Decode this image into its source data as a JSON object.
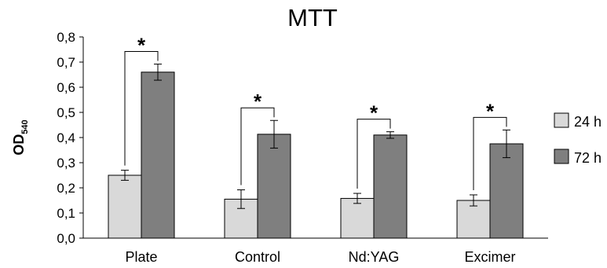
{
  "chart_data": {
    "type": "bar",
    "title": "MTT",
    "ylabel_main": "OD",
    "ylabel_sub": "540",
    "xlabel": "",
    "ylim": [
      0,
      0.8
    ],
    "yticks": [
      "0,0",
      "0,1",
      "0,2",
      "0,3",
      "0,4",
      "0,5",
      "0,6",
      "0,7",
      "0,8"
    ],
    "categories": [
      "Plate",
      "Control",
      "Nd:YAG",
      "Excimer"
    ],
    "series": [
      {
        "name": "24 h",
        "color": "#d9d9d9",
        "values": [
          0.25,
          0.155,
          0.158,
          0.15
        ],
        "errors": [
          0.02,
          0.037,
          0.02,
          0.022
        ]
      },
      {
        "name": "72 h",
        "color": "#7f7f7f",
        "values": [
          0.66,
          0.413,
          0.41,
          0.375
        ],
        "errors": [
          0.032,
          0.055,
          0.013,
          0.055
        ]
      }
    ],
    "significance": [
      "*",
      "*",
      "*",
      "*"
    ],
    "legend_position": "right",
    "grid": false
  }
}
